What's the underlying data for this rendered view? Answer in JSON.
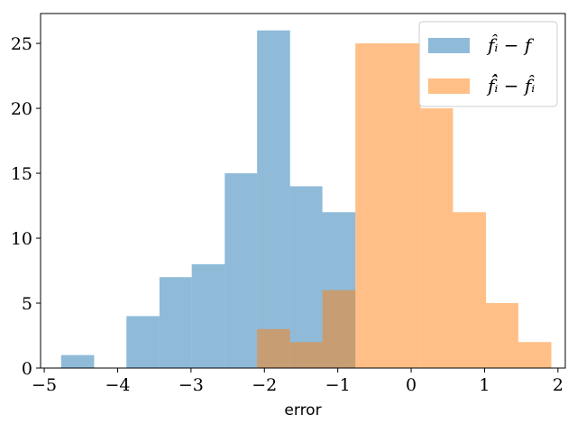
{
  "chart_data": {
    "type": "bar",
    "xlabel": "error",
    "ylabel": "",
    "xlim": [
      -5.05,
      2.1
    ],
    "ylim": [
      0,
      27.3
    ],
    "x_ticks": [
      -5,
      -4,
      -3,
      -2,
      -1,
      0,
      1,
      2
    ],
    "x_tick_labels": [
      "−5",
      "−4",
      "−3",
      "−2",
      "−1",
      "0",
      "1",
      "2"
    ],
    "y_ticks": [
      0,
      5,
      10,
      15,
      20,
      25
    ],
    "y_tick_labels": [
      "0",
      "5",
      "10",
      "15",
      "20",
      "25"
    ],
    "grid": false,
    "legend_position": "top-right",
    "series": [
      {
        "name": "f̂ᵢ − f",
        "color": "#1f77b4",
        "opacity": 0.5,
        "bin_edges": [
          -4.77,
          -4.32,
          -3.88,
          -3.43,
          -2.99,
          -2.54,
          -2.1,
          -1.65,
          -1.21,
          -0.76
        ],
        "counts": [
          1,
          0,
          4,
          7,
          8,
          15,
          26,
          14,
          12
        ]
      },
      {
        "name": "f̂̂ᵢ − f̂ᵢ",
        "color": "#ff7f0e",
        "opacity": 0.5,
        "bin_edges": [
          -2.1,
          -1.65,
          -1.21,
          -0.76,
          -0.32,
          0.13,
          0.57,
          1.02,
          1.46,
          1.91
        ],
        "counts": [
          3,
          2,
          6,
          25,
          25,
          20,
          12,
          5,
          2
        ]
      }
    ]
  }
}
